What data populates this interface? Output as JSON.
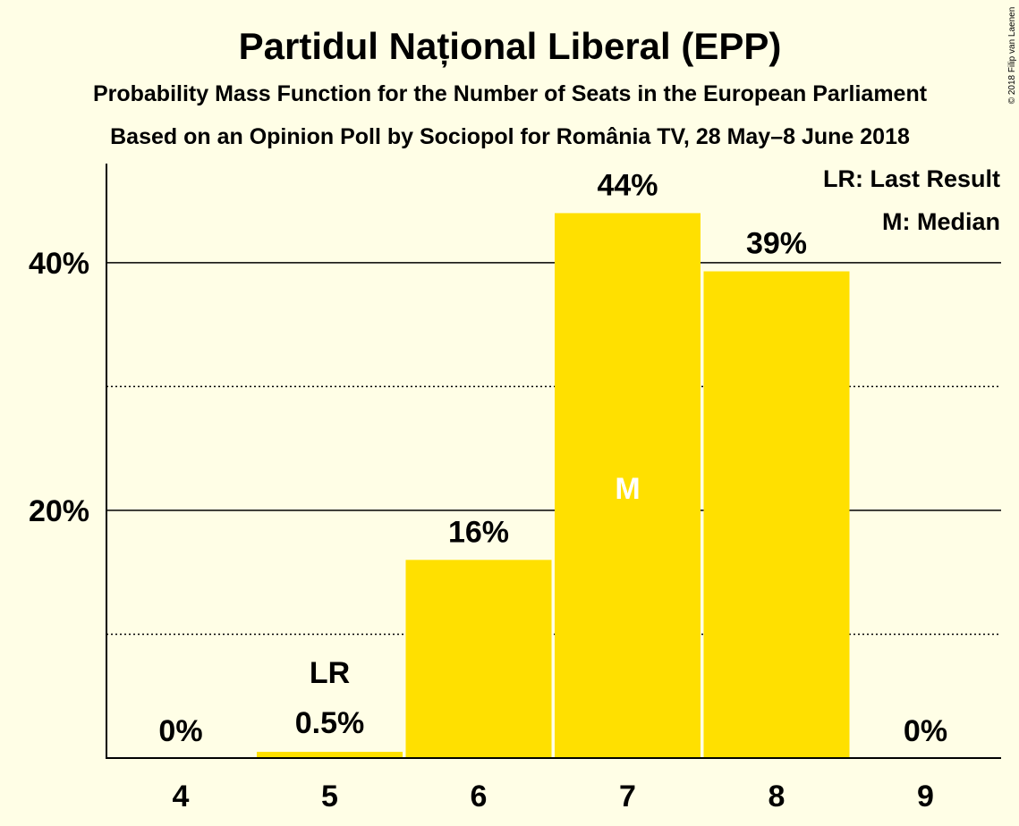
{
  "chart_data": {
    "type": "bar",
    "title": "Partidul Național Liberal (EPP)",
    "subtitle_lines": [
      "Probability Mass Function for the Number of Seats in the European Parliament",
      "Based on an Opinion Poll by Sociopol for România TV, 28 May–8 June 2018"
    ],
    "categories": [
      "4",
      "5",
      "6",
      "7",
      "8",
      "9"
    ],
    "values": [
      0,
      0.5,
      16,
      44,
      39.3,
      0
    ],
    "value_labels": [
      "0%",
      "0.5%",
      "16%",
      "44%",
      "39%",
      "0%"
    ],
    "bar_color": "#FFE000",
    "ylim": [
      0,
      48
    ],
    "y_major_ticks": [
      20,
      40
    ],
    "y_major_tick_labels": [
      "20%",
      "40%"
    ],
    "y_minor_gridlines": [
      10,
      30
    ],
    "markers": {
      "last_result": {
        "category": "5",
        "label": "LR"
      },
      "median": {
        "category": "7",
        "label": "M"
      }
    },
    "legend": {
      "position": "top-right",
      "entries": [
        "LR: Last Result",
        "M: Median"
      ]
    },
    "copyright": "© 2018 Filip van Laenen"
  }
}
